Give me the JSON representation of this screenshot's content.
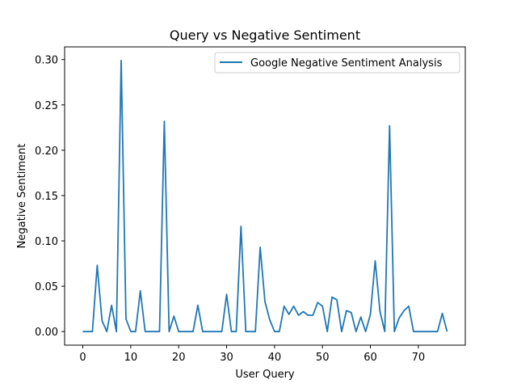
{
  "chart_data": {
    "type": "line",
    "title": "Query vs Negative Sentiment",
    "xlabel": "User Query",
    "ylabel": "Negative Sentiment",
    "xlim": [
      -3.8,
      79.8
    ],
    "ylim": [
      -0.015,
      0.314
    ],
    "xticks": [
      0,
      10,
      20,
      30,
      40,
      50,
      60,
      70
    ],
    "xtick_labels": [
      "0",
      "10",
      "20",
      "30",
      "40",
      "50",
      "60",
      "70"
    ],
    "yticks": [
      0.0,
      0.05,
      0.1,
      0.15,
      0.2,
      0.25,
      0.3
    ],
    "ytick_labels": [
      "0.00",
      "0.05",
      "0.10",
      "0.15",
      "0.20",
      "0.25",
      "0.30"
    ],
    "grid": false,
    "legend_position": "top-right",
    "series": [
      {
        "name": "Google Negative Sentiment Analysis",
        "color": "#1f77b4",
        "x": [
          0,
          1,
          2,
          3,
          4,
          5,
          6,
          7,
          8,
          9,
          10,
          11,
          12,
          13,
          14,
          15,
          16,
          17,
          18,
          19,
          20,
          21,
          22,
          23,
          24,
          25,
          26,
          27,
          28,
          29,
          30,
          31,
          32,
          33,
          34,
          35,
          36,
          37,
          38,
          39,
          40,
          41,
          42,
          43,
          44,
          45,
          46,
          47,
          48,
          49,
          50,
          51,
          52,
          53,
          54,
          55,
          56,
          57,
          58,
          59,
          60,
          61,
          62,
          63,
          64,
          65,
          66,
          67,
          68,
          69,
          70,
          71,
          72,
          73,
          74,
          75,
          76
        ],
        "values": [
          0,
          0,
          0,
          0.073,
          0.012,
          0,
          0.029,
          0,
          0.299,
          0.014,
          0,
          0,
          0.045,
          0,
          0,
          0,
          0,
          0.232,
          0,
          0.017,
          0,
          0,
          0,
          0,
          0.029,
          0,
          0,
          0,
          0,
          0,
          0.041,
          0,
          0,
          0.116,
          0,
          0,
          0,
          0.093,
          0.033,
          0.013,
          0,
          0,
          0.028,
          0.019,
          0.028,
          0.018,
          0.022,
          0.018,
          0.018,
          0.032,
          0.028,
          0,
          0.038,
          0.035,
          0,
          0.023,
          0.021,
          0,
          0.016,
          0,
          0.019,
          0.078,
          0.022,
          0,
          0.227,
          0,
          0.015,
          0.023,
          0.028,
          0,
          0,
          0,
          0,
          0,
          0,
          0.02,
          0
        ]
      }
    ]
  }
}
